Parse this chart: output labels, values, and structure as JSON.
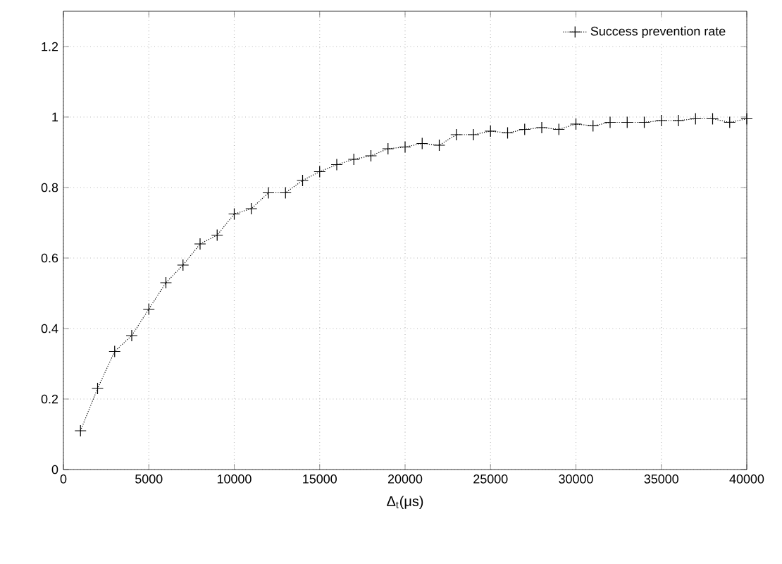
{
  "chart_data": {
    "type": "line",
    "xlabel": "Δ$_{t}$(μs)",
    "x": [
      1000,
      2000,
      3000,
      4000,
      5000,
      6000,
      7000,
      8000,
      9000,
      10000,
      11000,
      12000,
      13000,
      14000,
      15000,
      16000,
      17000,
      18000,
      19000,
      20000,
      21000,
      22000,
      23000,
      24000,
      25000,
      26000,
      27000,
      28000,
      29000,
      30000,
      31000,
      32000,
      33000,
      34000,
      35000,
      36000,
      37000,
      38000,
      39000,
      40000
    ],
    "series": [
      {
        "name": "Success prevention rate",
        "color": "#000000",
        "values": [
          0.11,
          0.23,
          0.335,
          0.38,
          0.455,
          0.53,
          0.58,
          0.64,
          0.665,
          0.725,
          0.74,
          0.785,
          0.785,
          0.82,
          0.845,
          0.865,
          0.88,
          0.89,
          0.91,
          0.915,
          0.925,
          0.92,
          0.95,
          0.95,
          0.96,
          0.955,
          0.965,
          0.97,
          0.965,
          0.98,
          0.975,
          0.985,
          0.985,
          0.985,
          0.99,
          0.99,
          0.995,
          0.995,
          0.985,
          0.995
        ]
      }
    ],
    "xlim": [
      0,
      40000
    ],
    "xticks": [
      0,
      5000,
      10000,
      15000,
      20000,
      25000,
      30000,
      35000,
      40000
    ],
    "ylim": [
      0,
      1.3
    ],
    "yticks": [
      0,
      0.2,
      0.4,
      0.6,
      0.8,
      1,
      1.2
    ],
    "grid": true,
    "legend": "top right",
    "marker": "cross",
    "line_style": "dotted"
  }
}
